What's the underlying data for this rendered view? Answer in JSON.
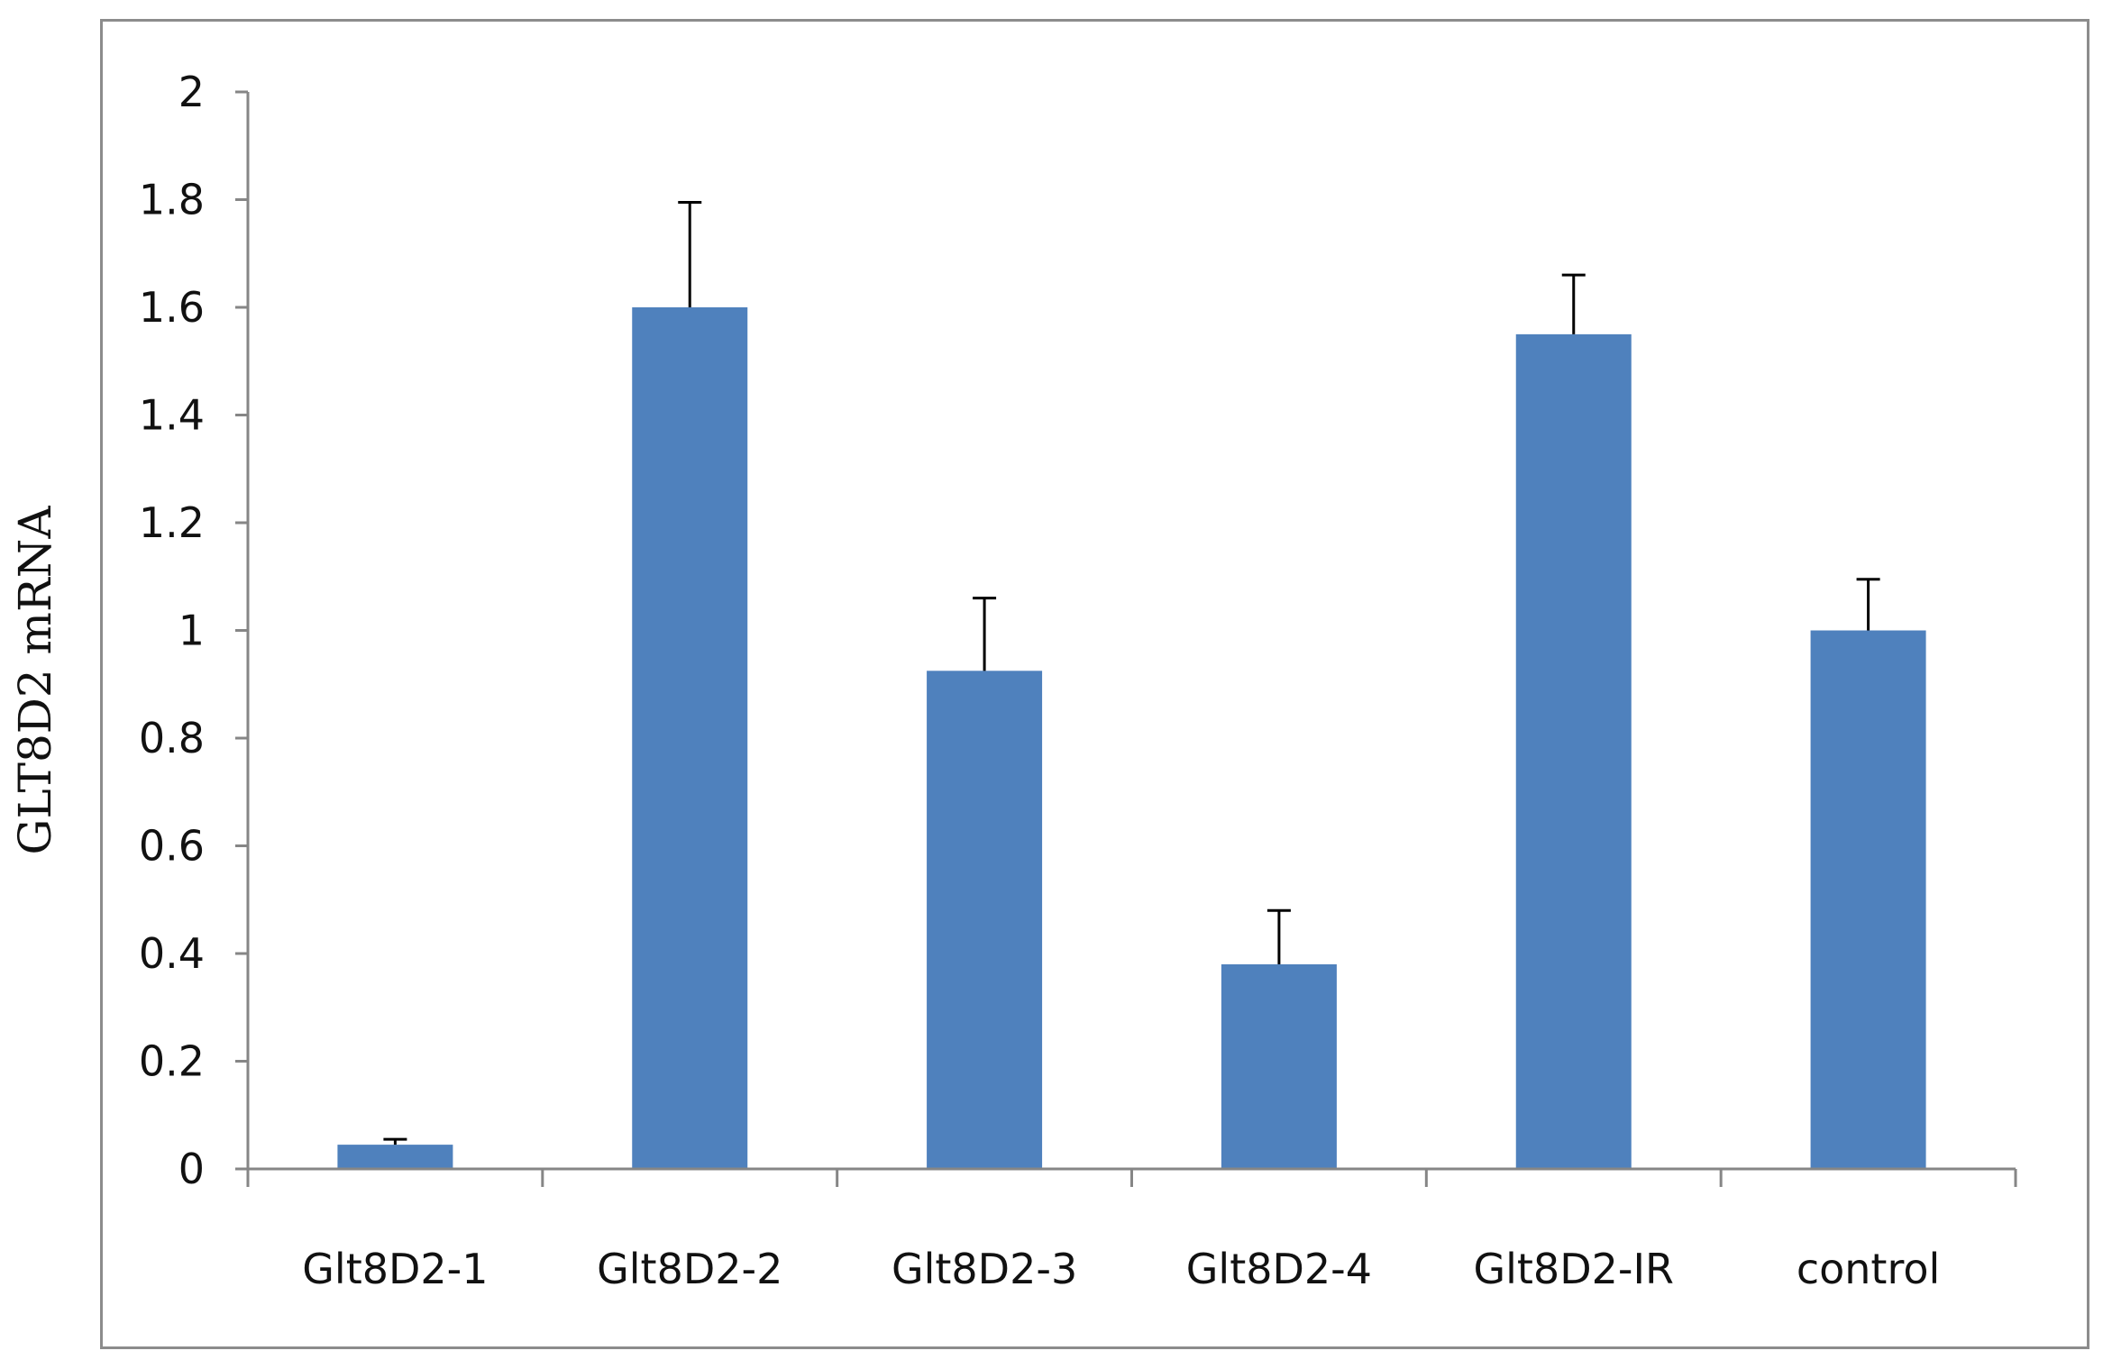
{
  "chart_data": {
    "type": "bar",
    "categories": [
      "Glt8D2-1",
      "Glt8D2-2",
      "Glt8D2-3",
      "Glt8D2-4",
      "Glt8D2-IR",
      "control"
    ],
    "values": [
      0.045,
      1.6,
      0.925,
      0.38,
      1.55,
      1.0
    ],
    "error_bars": [
      0.01,
      0.195,
      0.135,
      0.1,
      0.11,
      0.095
    ],
    "ylabel": "GLT8D2 mRNA",
    "xlabel": "",
    "ylim": [
      0,
      2
    ],
    "yticks": [
      "0",
      "0.2",
      "0.4",
      "0.6",
      "0.8",
      "1",
      "1.2",
      "1.4",
      "1.6",
      "1.8",
      "2"
    ],
    "grid": false,
    "bar_color": "#4f81bd",
    "axis_color": "#868686",
    "error_bar_color": "#000000"
  }
}
